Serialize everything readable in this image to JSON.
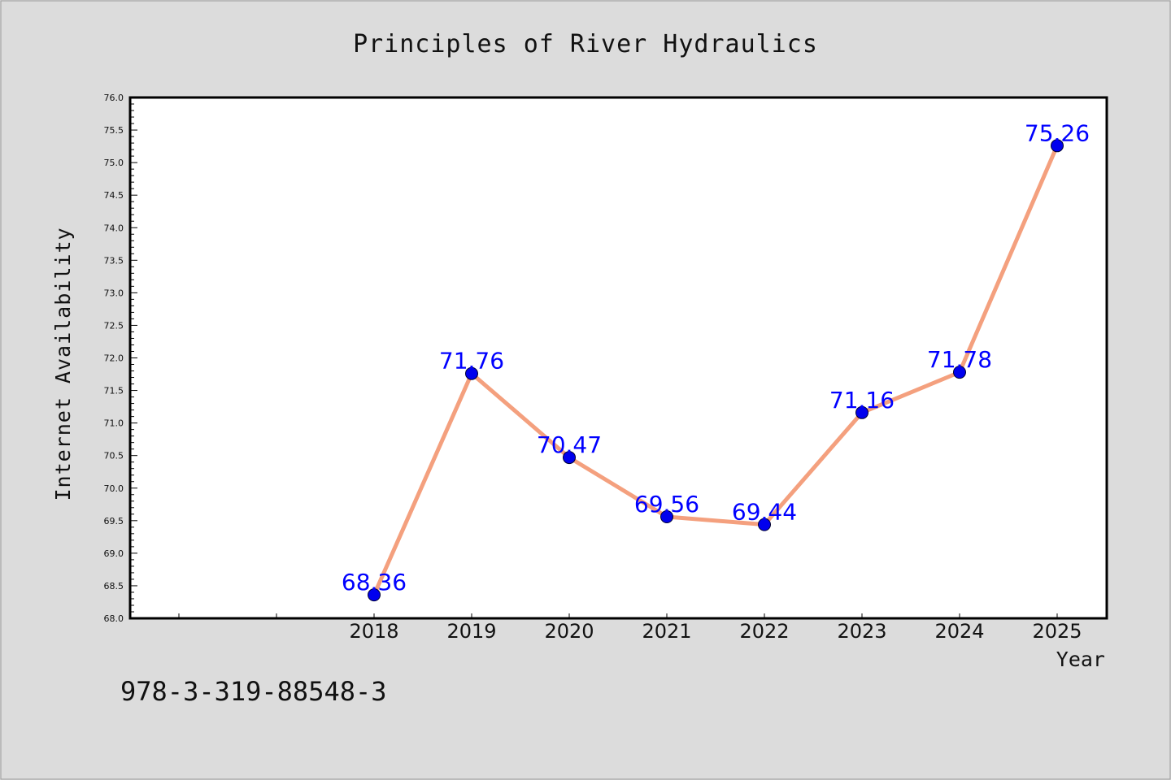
{
  "chart_data": {
    "type": "line",
    "title": "Principles of River Hydraulics",
    "xlabel": "Year",
    "ylabel": "Internet Availability",
    "x": [
      "2018",
      "2019",
      "2020",
      "2021",
      "2022",
      "2023",
      "2024",
      "2025"
    ],
    "values": [
      68.36,
      71.76,
      70.47,
      69.56,
      69.44,
      71.16,
      71.78,
      75.26
    ],
    "data_labels": [
      "68.36",
      "71.76",
      "70.47",
      "69.56",
      "69.44",
      "71.16",
      "71.78",
      "75.26"
    ],
    "ylim": [
      68.0,
      76.0
    ],
    "y_ticks": [
      "68.0",
      "68.5",
      "69.0",
      "69.5",
      "70.0",
      "70.5",
      "71.0",
      "71.5",
      "72.0",
      "72.5",
      "73.0",
      "73.5",
      "74.0",
      "74.5",
      "75.0",
      "75.5",
      "76.0"
    ],
    "grid": false,
    "line_color": "#f4a07e",
    "marker_color": "#0000ee",
    "label_color": "#0000ff"
  },
  "footer": {
    "isbn": "978-3-319-88548-3"
  }
}
